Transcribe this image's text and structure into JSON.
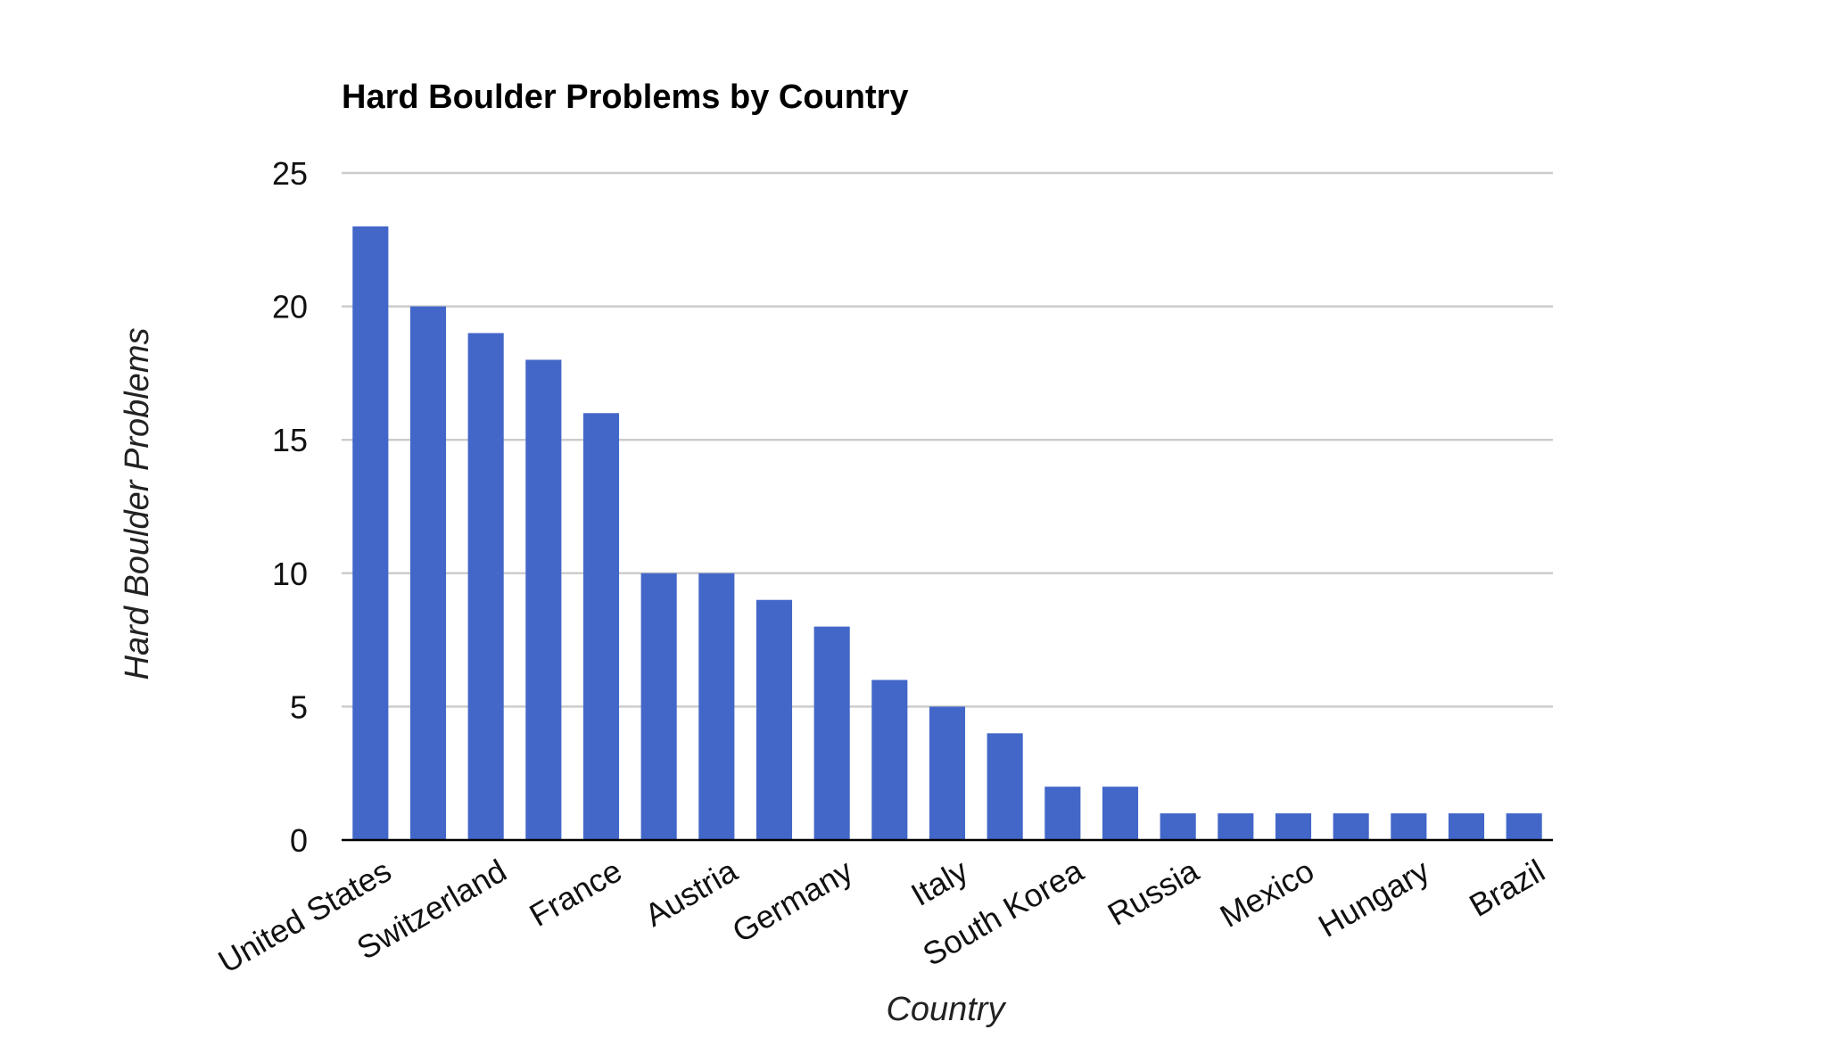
{
  "chart_data": {
    "type": "bar",
    "title": "Hard Boulder Problems by Country",
    "xlabel": "Country",
    "ylabel": "Hard Boulder Problems",
    "categories": [
      "United States",
      "",
      "Switzerland",
      "",
      "France",
      "",
      "Austria",
      "",
      "Germany",
      "",
      "Italy",
      "",
      "South Korea",
      "",
      "Russia",
      "",
      "Mexico",
      "",
      "Hungary",
      "",
      "Brazil"
    ],
    "values": [
      23,
      20,
      19,
      18,
      16,
      10,
      10,
      9,
      8,
      6,
      5,
      4,
      2,
      2,
      1,
      1,
      1,
      1,
      1,
      1,
      1
    ],
    "ylim": [
      0,
      25
    ],
    "yticks": [
      0,
      5,
      10,
      15,
      20,
      25
    ],
    "grid": true,
    "legend": "none",
    "bar_color": "#4267c8",
    "grid_color": "#cccccc",
    "axis_color": "#000000"
  }
}
